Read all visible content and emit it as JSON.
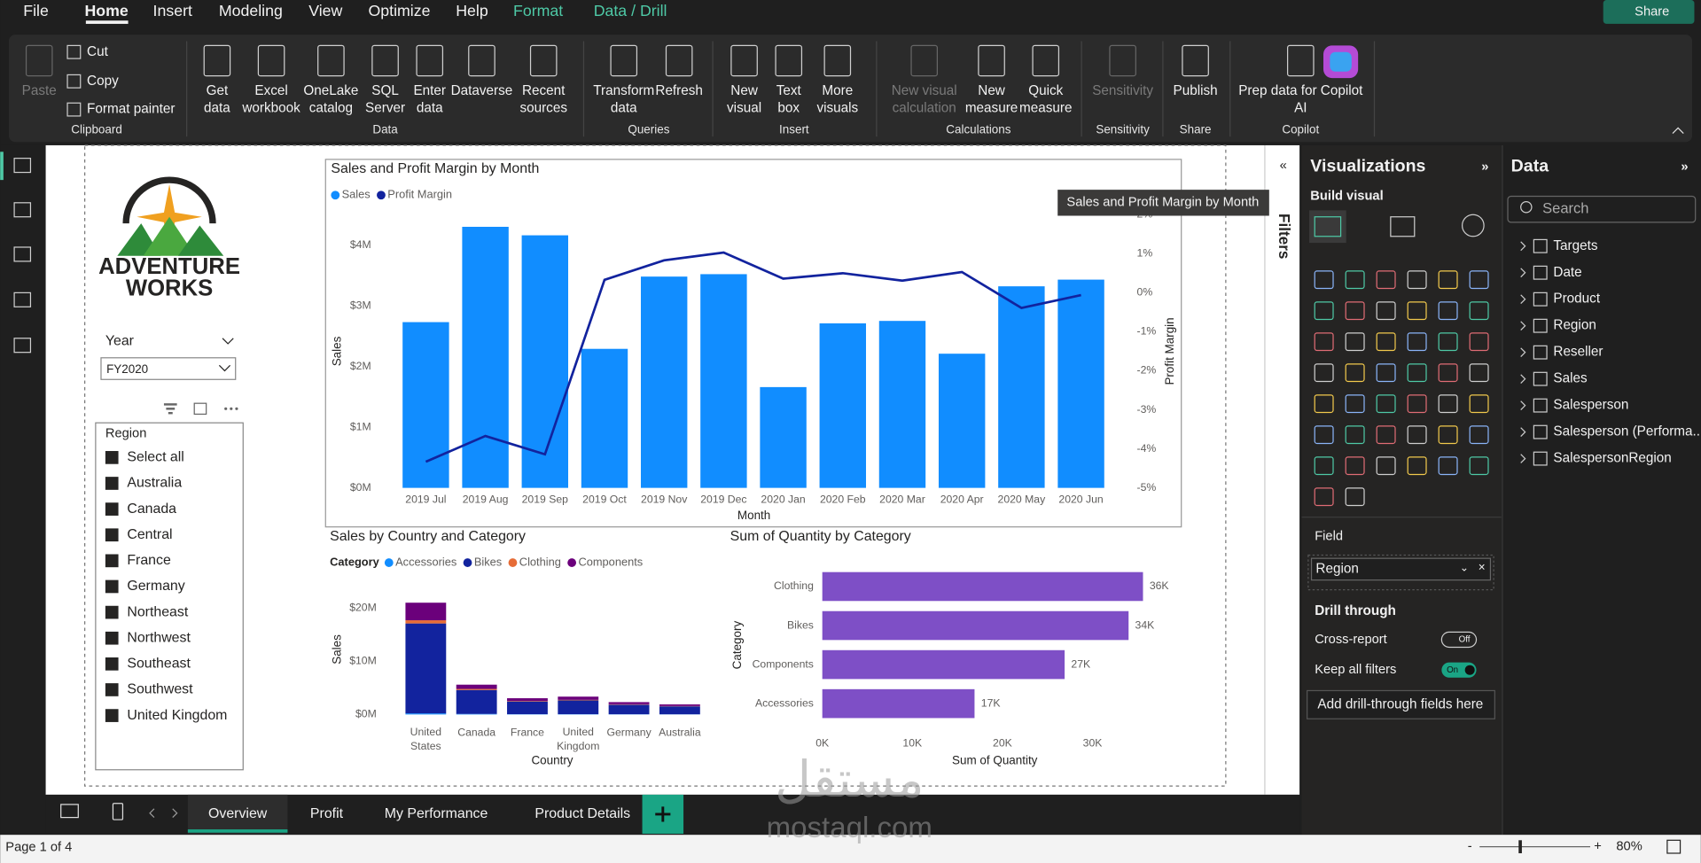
{
  "menu": [
    "File",
    "Home",
    "Insert",
    "Modeling",
    "View",
    "Optimize",
    "Help",
    "Format",
    "Data / Drill"
  ],
  "share": "Share",
  "ribbon": [
    {
      "group": "Clipboard",
      "buttons": [
        [
          "Paste"
        ],
        [
          "Cut"
        ],
        [
          "Copy"
        ],
        [
          "Format painter"
        ]
      ]
    },
    {
      "group": "Data",
      "buttons": [
        [
          "Get",
          "data"
        ],
        [
          "Excel",
          "workbook"
        ],
        [
          "OneLake",
          "catalog"
        ],
        [
          "SQL",
          "Server"
        ],
        [
          "Enter",
          "data"
        ],
        [
          "Dataverse"
        ],
        [
          "Recent",
          "sources"
        ]
      ]
    },
    {
      "group": "Queries",
      "buttons": [
        [
          "Transform",
          "data"
        ],
        [
          "Refresh"
        ]
      ]
    },
    {
      "group": "Insert",
      "buttons": [
        [
          "New",
          "visual"
        ],
        [
          "Text",
          "box"
        ],
        [
          "More",
          "visuals"
        ]
      ]
    },
    {
      "group": "Calculations",
      "buttons": [
        [
          "New visual",
          "calculation"
        ],
        [
          "New",
          "measure"
        ],
        [
          "Quick",
          "measure"
        ]
      ]
    },
    {
      "group": "Sensitivity",
      "buttons": [
        [
          "Sensitivity"
        ]
      ]
    },
    {
      "group": "Share",
      "buttons": [
        [
          "Publish"
        ]
      ]
    },
    {
      "group": "Copilot",
      "buttons": [
        [
          "Prep data for Copilot",
          "AI"
        ]
      ]
    }
  ],
  "logo": {
    "line1": "ADVENTURE",
    "line2": "WORKS"
  },
  "year_slicer": {
    "title": "Year",
    "value": "FY2020"
  },
  "region_slicer": {
    "title": "Region",
    "items": [
      "Select all",
      "Australia",
      "Canada",
      "Central",
      "France",
      "Germany",
      "Northeast",
      "Northwest",
      "Southeast",
      "Southwest",
      "United Kingdom"
    ]
  },
  "tooltip": "Sales and Profit Margin by Month",
  "chart_data": [
    {
      "type": "combo",
      "title": "Sales and Profit Margin by Month",
      "categories": [
        "2019 Jul",
        "2019 Aug",
        "2019 Sep",
        "2019 Oct",
        "2019 Nov",
        "2019 Dec",
        "2020 Jan",
        "2020 Feb",
        "2020 Mar",
        "2020 Apr",
        "2020 May",
        "2020 Jun"
      ],
      "series": [
        {
          "name": "Sales",
          "color": "#118DFF",
          "kind": "bar",
          "values": [
            2730000,
            4300000,
            4160000,
            2290000,
            3480000,
            3520000,
            1660000,
            2710000,
            2750000,
            2210000,
            3320000,
            3430000
          ]
        },
        {
          "name": "Profit Margin",
          "color": "#12239E",
          "kind": "line",
          "axis": "y2",
          "values": [
            -4.33,
            -3.67,
            -4.14,
            0.33,
            0.83,
            1.03,
            0.36,
            0.5,
            0.31,
            0.53,
            -0.39,
            -0.06
          ]
        }
      ],
      "ylim": [
        0,
        4500000
      ],
      "yticks": [
        {
          "value": 0,
          "label": "$0M"
        },
        {
          "value": 1000000,
          "label": "$1M"
        },
        {
          "value": 2000000,
          "label": "$2M"
        },
        {
          "value": 3000000,
          "label": "$3M"
        },
        {
          "value": 4000000,
          "label": "$4M"
        }
      ],
      "y2lim": [
        -5,
        2
      ],
      "y2ticks": [
        {
          "value": -5,
          "label": "-5%"
        },
        {
          "value": -4,
          "label": "-4%"
        },
        {
          "value": -3,
          "label": "-3%"
        },
        {
          "value": -2,
          "label": "-2%"
        },
        {
          "value": -1,
          "label": "-1%"
        },
        {
          "value": 0,
          "label": "0%"
        },
        {
          "value": 1,
          "label": "1%"
        },
        {
          "value": 2,
          "label": "2%"
        }
      ],
      "x_label": "Month",
      "y_label": "Sales",
      "y2_label": "Profit Margin",
      "grid": false
    },
    {
      "type": "stacked",
      "title": "Sales by Country and Category",
      "legend_title": "Category",
      "categories": [
        "United States",
        "Canada",
        "France",
        "United Kingdom",
        "Germany",
        "Australia"
      ],
      "series": [
        {
          "name": "Accessories",
          "color": "#118DFF",
          "values": [
            200000,
            100000,
            50000,
            50000,
            40000,
            30000
          ]
        },
        {
          "name": "Bikes",
          "color": "#12239E",
          "values": [
            16900000,
            4500000,
            2400000,
            2600000,
            1800000,
            1500000
          ]
        },
        {
          "name": "Clothing",
          "color": "#E66C37",
          "values": [
            600000,
            200000,
            100000,
            100000,
            80000,
            60000
          ]
        },
        {
          "name": "Components",
          "color": "#6B007B",
          "values": [
            3300000,
            800000,
            500000,
            600000,
            400000,
            300000
          ]
        }
      ],
      "ylim": [
        0,
        22000000
      ],
      "yticks": [
        {
          "value": 0,
          "label": "$0M"
        },
        {
          "value": 10000000,
          "label": "$10M"
        },
        {
          "value": 20000000,
          "label": "$20M"
        }
      ],
      "x_label": "Country",
      "y_label": "Sales",
      "grid": false
    },
    {
      "type": "bar",
      "orientation": "horizontal",
      "title": "Sum of Quantity by Category",
      "categories": [
        "Clothing",
        "Bikes",
        "Components",
        "Accessories"
      ],
      "values": [
        35600,
        34000,
        26900,
        16900
      ],
      "value_labels": [
        "36K",
        "34K",
        "27K",
        "17K"
      ],
      "color": "#7E4FC6",
      "xlim": [
        0,
        36000
      ],
      "xticks": [
        {
          "value": 0,
          "label": "0K"
        },
        {
          "value": 10000,
          "label": "10K"
        },
        {
          "value": 20000,
          "label": "20K"
        },
        {
          "value": 30000,
          "label": "30K"
        }
      ],
      "x_label": "Sum of Quantity",
      "y_label": "Category",
      "grid": false
    }
  ],
  "filters": "Filters",
  "visualizations": {
    "title": "Visualizations",
    "build": "Build visual",
    "field_title": "Field",
    "field": "Region",
    "drill": "Drill through",
    "cross_report": "Cross-report",
    "cross_state": "Off",
    "keep_filters": "Keep all filters",
    "keep_state": "On",
    "add_fields": "Add drill-through fields here"
  },
  "data_pane": {
    "title": "Data",
    "search": "Search",
    "tables": [
      "Targets",
      "Date",
      "Product",
      "Region",
      "Reseller",
      "Sales",
      "Salesperson",
      "Salesperson (Performa...",
      "SalespersonRegion"
    ]
  },
  "tabs": [
    "Overview",
    "Profit",
    "My Performance",
    "Product Details"
  ],
  "status": {
    "page": "Page 1 of 4",
    "zoom": "80%"
  },
  "watermark": {
    "logo": "مستقل",
    "url": "mostaql.com"
  }
}
